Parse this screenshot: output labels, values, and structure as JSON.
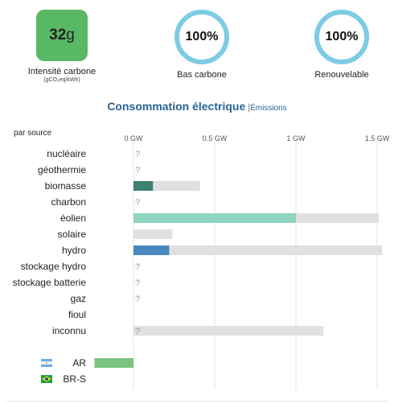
{
  "kpis": {
    "carbon": {
      "value": "32",
      "unit": "g",
      "label": "Intensité carbone",
      "sublabel": "(gCO₂eq/kWh)",
      "color": "#59b866"
    },
    "low_carbon": {
      "value": "100%",
      "label": "Bas carbone"
    },
    "renewable": {
      "value": "100%",
      "label": "Renouvelable"
    }
  },
  "heading": {
    "title": "Consommation électrique",
    "separator": "|",
    "alt_link": "Émissions"
  },
  "by_source_label": "par source",
  "chart_data": {
    "type": "bar",
    "orientation": "horizontal",
    "title": "",
    "xlabel": "",
    "ylabel": "",
    "unit": "GW",
    "xlim": [
      0,
      1.5
    ],
    "ticks": [
      {
        "value": 0,
        "label": "0 GW"
      },
      {
        "value": 0.5,
        "label": "0.5 GW"
      },
      {
        "value": 1,
        "label": "1 GW"
      },
      {
        "value": 1.5,
        "label": "1.5 GW"
      }
    ],
    "grid": true,
    "unknown_marker": "?",
    "categories": [
      "nucléaire",
      "géothermie",
      "biomasse",
      "charbon",
      "éolien",
      "solaire",
      "hydro",
      "stockage hydro",
      "stockage batterie",
      "gaz",
      "fioul",
      "inconnu"
    ],
    "series": [
      {
        "values": [
          null,
          null,
          0.12,
          null,
          1.0,
          0.0,
          0.22,
          null,
          null,
          null,
          null,
          null
        ],
        "color_by_source": [
          "",
          "",
          "#3f8070",
          "",
          "#8fd4c1",
          "",
          "#4a88bd",
          "",
          "",
          "",
          "",
          ""
        ]
      },
      {
        "values": [
          null,
          null,
          0.41,
          null,
          1.51,
          0.24,
          1.53,
          null,
          null,
          null,
          null,
          1.17
        ],
        "color": "#e0e0e0"
      }
    ],
    "unknown": [
      true,
      true,
      false,
      true,
      false,
      false,
      false,
      true,
      true,
      true,
      false,
      true
    ],
    "exchanges": [
      {
        "zone": "AR",
        "value": -0.24,
        "color": "#7ac47f"
      },
      {
        "zone": "BR-S",
        "value": 0.0,
        "color": "#7ac47f"
      }
    ]
  }
}
